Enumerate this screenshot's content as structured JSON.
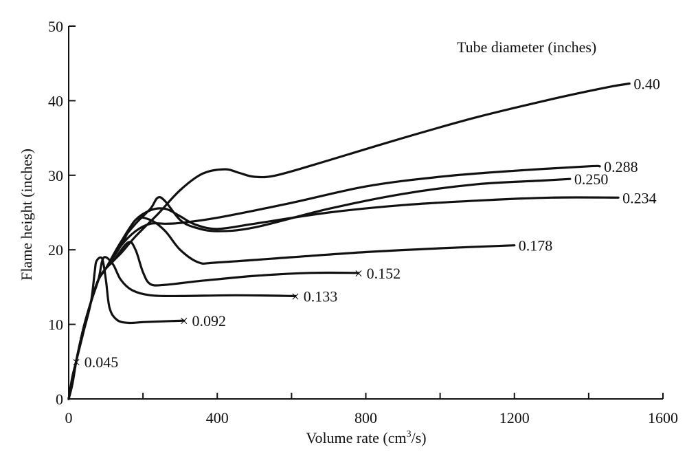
{
  "chart_data": {
    "type": "line",
    "title": "",
    "xlabel": "Volume rate (cm³/s)",
    "ylabel": "Flame height (inches)",
    "xlim": [
      0,
      1600
    ],
    "ylim": [
      0,
      50
    ],
    "xticks": [
      0,
      400,
      800,
      1200,
      1600
    ],
    "xticks_minor": [
      200,
      600,
      1000,
      1400
    ],
    "yticks": [
      0,
      10,
      20,
      30,
      40,
      50
    ],
    "grid": false,
    "legend_title": "Tube diameter (inches)",
    "legend_position": "top-right",
    "series": [
      {
        "name": "0.045",
        "end_marker": "x",
        "label": "× 0.045",
        "points": [
          [
            0,
            0
          ],
          [
            10,
            2
          ],
          [
            20,
            5
          ]
        ]
      },
      {
        "name": "0.092",
        "end_marker": "x",
        "label": "× 0.092",
        "points": [
          [
            0,
            0
          ],
          [
            10,
            3
          ],
          [
            20,
            5
          ],
          [
            40,
            9
          ],
          [
            60,
            13
          ],
          [
            70,
            17
          ],
          [
            75,
            18.5
          ],
          [
            90,
            18.8
          ],
          [
            100,
            16
          ],
          [
            110,
            12.2
          ],
          [
            130,
            10.6
          ],
          [
            160,
            10.2
          ],
          [
            200,
            10.3
          ],
          [
            250,
            10.4
          ],
          [
            310,
            10.5
          ]
        ]
      },
      {
        "name": "0.133",
        "end_marker": "x",
        "label": "× 0.133",
        "points": [
          [
            0,
            0
          ],
          [
            20,
            5
          ],
          [
            40,
            9.5
          ],
          [
            60,
            13
          ],
          [
            80,
            16
          ],
          [
            90,
            18.5
          ],
          [
            100,
            19
          ],
          [
            120,
            18
          ],
          [
            140,
            16
          ],
          [
            170,
            14.6
          ],
          [
            220,
            13.9
          ],
          [
            300,
            13.8
          ],
          [
            450,
            13.9
          ],
          [
            610,
            13.8
          ]
        ]
      },
      {
        "name": "0.152",
        "end_marker": "x",
        "label": "× 0.152",
        "points": [
          [
            0,
            0
          ],
          [
            20,
            5
          ],
          [
            40,
            9.5
          ],
          [
            60,
            13
          ],
          [
            80,
            16
          ],
          [
            100,
            17.5
          ],
          [
            120,
            18.5
          ],
          [
            160,
            21
          ],
          [
            180,
            20
          ],
          [
            200,
            17
          ],
          [
            220,
            15.4
          ],
          [
            260,
            15.3
          ],
          [
            350,
            15.8
          ],
          [
            500,
            16.5
          ],
          [
            650,
            16.9
          ],
          [
            780,
            16.9
          ]
        ]
      },
      {
        "name": "0.178",
        "end_marker": "",
        "label": "0.178",
        "points": [
          [
            0,
            0
          ],
          [
            20,
            5
          ],
          [
            40,
            9.5
          ],
          [
            60,
            13
          ],
          [
            80,
            16
          ],
          [
            100,
            17.5
          ],
          [
            140,
            20.5
          ],
          [
            180,
            24
          ],
          [
            220,
            24
          ],
          [
            260,
            22.5
          ],
          [
            300,
            20
          ],
          [
            350,
            18.3
          ],
          [
            400,
            18.3
          ],
          [
            600,
            19
          ],
          [
            800,
            19.7
          ],
          [
            1000,
            20.2
          ],
          [
            1200,
            20.6
          ]
        ]
      },
      {
        "name": "0.234",
        "end_marker": "",
        "label": "0.234",
        "points": [
          [
            0,
            0
          ],
          [
            20,
            5
          ],
          [
            40,
            9.5
          ],
          [
            60,
            13
          ],
          [
            80,
            16
          ],
          [
            100,
            17.5
          ],
          [
            140,
            21
          ],
          [
            180,
            24
          ],
          [
            220,
            25.3
          ],
          [
            260,
            25.5
          ],
          [
            300,
            24.5
          ],
          [
            340,
            23.4
          ],
          [
            400,
            22.8
          ],
          [
            500,
            23.5
          ],
          [
            700,
            25
          ],
          [
            900,
            26
          ],
          [
            1100,
            26.6
          ],
          [
            1300,
            27
          ],
          [
            1480,
            27
          ]
        ]
      },
      {
        "name": "0.250",
        "end_marker": "",
        "label": "0.250",
        "points": [
          [
            0,
            0
          ],
          [
            20,
            5
          ],
          [
            40,
            9.5
          ],
          [
            60,
            13
          ],
          [
            80,
            16
          ],
          [
            100,
            17.5
          ],
          [
            140,
            21
          ],
          [
            180,
            23.5
          ],
          [
            220,
            25.5
          ],
          [
            240,
            27
          ],
          [
            260,
            26.5
          ],
          [
            300,
            24
          ],
          [
            340,
            23
          ],
          [
            400,
            22.5
          ],
          [
            500,
            23
          ],
          [
            700,
            25.5
          ],
          [
            900,
            27.5
          ],
          [
            1100,
            28.8
          ],
          [
            1280,
            29.3
          ],
          [
            1350,
            29.5
          ]
        ]
      },
      {
        "name": "0.288",
        "end_marker": "",
        "label": "0.288",
        "points": [
          [
            0,
            0
          ],
          [
            20,
            5
          ],
          [
            40,
            9.5
          ],
          [
            60,
            13
          ],
          [
            80,
            16
          ],
          [
            100,
            17.5
          ],
          [
            140,
            20.5
          ],
          [
            180,
            22.5
          ],
          [
            220,
            23.5
          ],
          [
            260,
            23.5
          ],
          [
            300,
            23.6
          ],
          [
            400,
            24.3
          ],
          [
            600,
            26.3
          ],
          [
            800,
            28.5
          ],
          [
            1000,
            29.8
          ],
          [
            1200,
            30.6
          ],
          [
            1400,
            31.2
          ],
          [
            1430,
            31.2
          ]
        ]
      },
      {
        "name": "0.40",
        "end_marker": "",
        "label": "0.40",
        "points": [
          [
            0,
            0
          ],
          [
            20,
            5
          ],
          [
            40,
            9.5
          ],
          [
            60,
            13
          ],
          [
            80,
            16
          ],
          [
            100,
            17.5
          ],
          [
            140,
            19.5
          ],
          [
            180,
            21.8
          ],
          [
            240,
            24.8
          ],
          [
            300,
            28
          ],
          [
            360,
            30.2
          ],
          [
            420,
            30.8
          ],
          [
            460,
            30.3
          ],
          [
            500,
            29.8
          ],
          [
            560,
            30
          ],
          [
            700,
            32
          ],
          [
            900,
            35
          ],
          [
            1100,
            37.8
          ],
          [
            1300,
            40.2
          ],
          [
            1450,
            41.8
          ],
          [
            1510,
            42.3
          ]
        ]
      }
    ]
  }
}
